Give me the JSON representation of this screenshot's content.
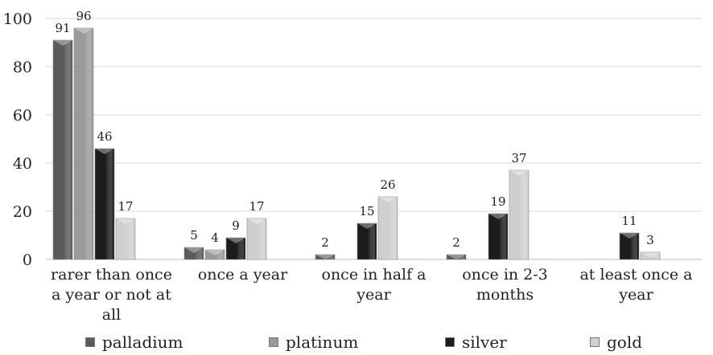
{
  "chart_data": {
    "type": "bar",
    "title": "",
    "xlabel": "",
    "ylabel": "",
    "ylim": [
      0,
      100
    ],
    "yticks": [
      0,
      20,
      40,
      60,
      80,
      100
    ],
    "grid": true,
    "legend_position": "bottom",
    "categories": [
      "rarer than once a year or not at all",
      "once a year",
      "once in half a year",
      "once in 2-3 months",
      "at least once a year"
    ],
    "category_lines": [
      [
        "rarer than once",
        "a year or not at",
        "all"
      ],
      [
        "once a year"
      ],
      [
        "once in half a",
        "year"
      ],
      [
        "once in 2-3",
        "months"
      ],
      [
        "at least once a",
        "year"
      ]
    ],
    "series": [
      {
        "name": "palladium",
        "color": "#5a5a5a",
        "values": [
          91,
          5,
          2,
          2,
          null
        ]
      },
      {
        "name": "platinum",
        "color": "#9a9a9a",
        "values": [
          96,
          4,
          null,
          null,
          null
        ]
      },
      {
        "name": "silver",
        "color": "#1c1c1c",
        "values": [
          46,
          9,
          15,
          19,
          11
        ]
      },
      {
        "name": "gold",
        "color": "#cfcfcf",
        "values": [
          17,
          17,
          26,
          37,
          3
        ]
      }
    ]
  }
}
